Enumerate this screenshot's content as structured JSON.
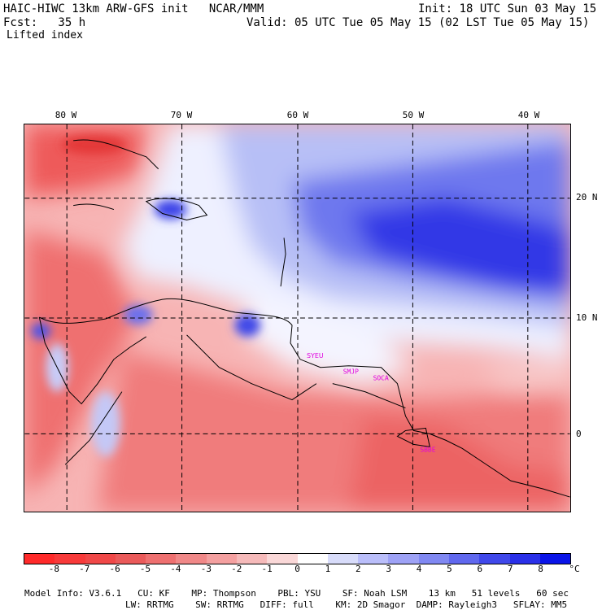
{
  "header": {
    "model": "HAIC-HIWC 13km ARW-GFS init   NCAR/MMM",
    "init": "Init: 18 UTC Sun 03 May 15",
    "fcst": "Fcst:   35 h",
    "valid": "Valid: 05 UTC Tue 05 May 15 (02 LST Tue 05 May 15)",
    "field": "Lifted index"
  },
  "map": {
    "lon_labels": [
      "80 W",
      "70 W",
      "60 W",
      "50 W",
      "40 W"
    ],
    "lat_labels": [
      "20 N",
      "10 N",
      "0"
    ],
    "stations": [
      "SYEU",
      "SMJP",
      "SOCA",
      "SBBE"
    ]
  },
  "colorbar": {
    "unit": "°C",
    "ticks": [
      "-8",
      "-7",
      "-6",
      "-5",
      "-4",
      "-3",
      "-2",
      "-1",
      "0",
      "1",
      "2",
      "3",
      "4",
      "5",
      "6",
      "7",
      "8"
    ],
    "colors": [
      "#ff2a2a",
      "#f83a3a",
      "#f04848",
      "#ea5a5a",
      "#ee7070",
      "#f08888",
      "#f4a0a0",
      "#f6baba",
      "#fad8d8",
      "#ffffff",
      "#d8dcfa",
      "#babefa",
      "#9ea2f6",
      "#8088f2",
      "#6068ee",
      "#4048ea",
      "#2a30e8",
      "#0a14e8"
    ]
  },
  "footer": {
    "line1": [
      "Model Info: V3.6.1",
      "CU: KF",
      "MP: Thompson",
      "PBL: YSU",
      "SF: Noah LSM",
      "13 km",
      "51 levels",
      "60 sec"
    ],
    "line2": [
      "LW: RRTMG",
      "SW: RRTMG",
      "DIFF: full",
      "KM: 2D Smagor",
      "DAMP: Rayleigh3",
      "SFLAY: MM5"
    ]
  }
}
